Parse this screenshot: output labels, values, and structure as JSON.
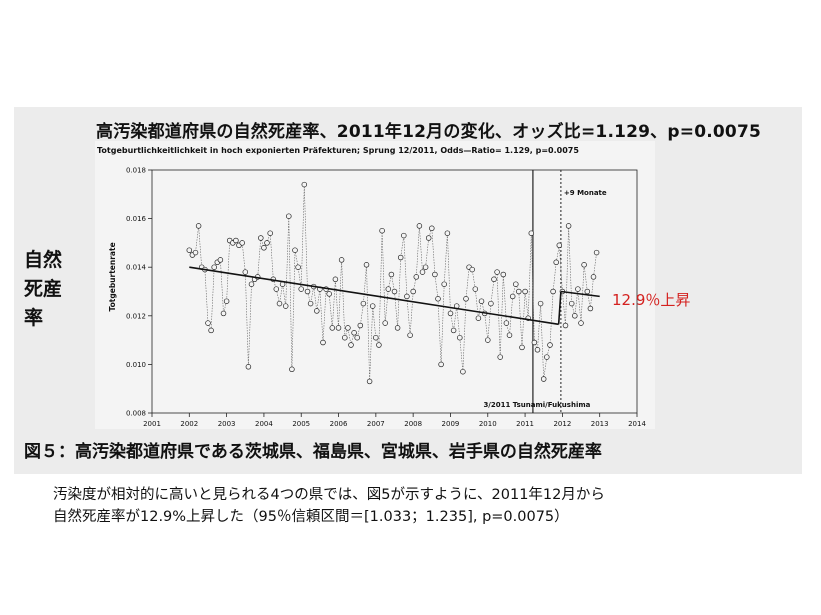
{
  "main_title": "高汚染都道府県の自然死産率、2011年12月の変化、オッズ比=1.129、p=0.0075",
  "side_label": [
    "自然",
    "死産",
    "率"
  ],
  "annotation": "12.9％上昇",
  "annotation_color": "#d4211f",
  "figure_caption": "図５：高汚染都道府県である茨城県、福島県、宮城県、岩手県の自然死産率",
  "description": [
    "汚染度が相対的に高いと見られる4つの県では、図5が示すように、2011年12月から",
    "自然死産率が12.9%上昇した（95％信頼区間＝[1.033；1.235], p=0.0075）"
  ],
  "chart_data": {
    "type": "scatter",
    "title": "Totgeburtlichkeitlichkeit in hoch exponierten Präfekturen; Sprung 12/2011, Odds—Ratio= 1.129, p=0.0075",
    "ylabel": "Totgeburtenrate",
    "xlabel": "",
    "xlim": [
      2001,
      2014
    ],
    "ylim": [
      0.008,
      0.018
    ],
    "x_ticks": [
      "2001",
      "2002",
      "2003",
      "2004",
      "2005",
      "2006",
      "2007",
      "2008",
      "2009",
      "2010",
      "2011",
      "2012",
      "2013",
      "2014"
    ],
    "y_ticks": [
      "0.008",
      "0.010",
      "0.012",
      "0.014",
      "0.016",
      "0.018"
    ],
    "grid": false,
    "events": [
      {
        "x": 2011.21,
        "label": "3/2011 Tsunami/Fukushima"
      },
      {
        "x": 2011.96,
        "label": "+9 Monate"
      }
    ],
    "trend_segments": [
      {
        "x": [
          2002.0,
          2011.9
        ],
        "y": [
          0.014,
          0.01165
        ]
      },
      {
        "x": [
          2011.96,
          2013.0
        ],
        "y": [
          0.013,
          0.0128
        ]
      }
    ],
    "series": [
      {
        "x": [
          2002.0,
          2002.083,
          2002.167,
          2002.25,
          2002.333,
          2002.417,
          2002.5,
          2002.583,
          2002.667,
          2002.75,
          2002.833,
          2002.917,
          2003.0,
          2003.083,
          2003.167,
          2003.25,
          2003.333,
          2003.417,
          2003.5,
          2003.583,
          2003.667,
          2003.75,
          2003.833,
          2003.917,
          2004.0,
          2004.083,
          2004.167,
          2004.25,
          2004.333,
          2004.417,
          2004.5,
          2004.583,
          2004.667,
          2004.75,
          2004.833,
          2004.917,
          2005.0,
          2005.083,
          2005.167,
          2005.25,
          2005.333,
          2005.417,
          2005.5,
          2005.583,
          2005.667,
          2005.75,
          2005.833,
          2005.917,
          2006.0,
          2006.083,
          2006.167,
          2006.25,
          2006.333,
          2006.417,
          2006.5,
          2006.583,
          2006.667,
          2006.75,
          2006.833,
          2006.917,
          2007.0,
          2007.083,
          2007.167,
          2007.25,
          2007.333,
          2007.417,
          2007.5,
          2007.583,
          2007.667,
          2007.75,
          2007.833,
          2007.917,
          2008.0,
          2008.083,
          2008.167,
          2008.25,
          2008.333,
          2008.417,
          2008.5,
          2008.583,
          2008.667,
          2008.75,
          2008.833,
          2008.917,
          2009.0,
          2009.083,
          2009.167,
          2009.25,
          2009.333,
          2009.417,
          2009.5,
          2009.583,
          2009.667,
          2009.75,
          2009.833,
          2009.917,
          2010.0,
          2010.083,
          2010.167,
          2010.25,
          2010.333,
          2010.417,
          2010.5,
          2010.583,
          2010.667,
          2010.75,
          2010.833,
          2010.917,
          2011.0,
          2011.083,
          2011.167,
          2011.25,
          2011.333,
          2011.417,
          2011.5,
          2011.583,
          2011.667,
          2011.75,
          2011.833,
          2011.917,
          2012.0,
          2012.083,
          2012.167,
          2012.25,
          2012.333,
          2012.417,
          2012.5,
          2012.583,
          2012.667,
          2012.75,
          2012.833,
          2012.917
        ],
        "y": [
          0.0147,
          0.0145,
          0.0146,
          0.0157,
          0.014,
          0.0139,
          0.0117,
          0.0114,
          0.014,
          0.0142,
          0.0143,
          0.0121,
          0.0126,
          0.0151,
          0.015,
          0.0151,
          0.0149,
          0.015,
          0.0138,
          0.0099,
          0.0133,
          0.0135,
          0.0136,
          0.0152,
          0.0148,
          0.015,
          0.0154,
          0.0135,
          0.0131,
          0.0125,
          0.0133,
          0.0124,
          0.0161,
          0.0098,
          0.0147,
          0.014,
          0.0131,
          0.0174,
          0.013,
          0.0125,
          0.0132,
          0.0122,
          0.0131,
          0.0109,
          0.0131,
          0.0129,
          0.0115,
          0.0135,
          0.0115,
          0.0143,
          0.0111,
          0.0115,
          0.0108,
          0.0113,
          0.0111,
          0.0116,
          0.0125,
          0.0141,
          0.0093,
          0.0124,
          0.0111,
          0.0108,
          0.0155,
          0.0117,
          0.0131,
          0.0137,
          0.013,
          0.0115,
          0.0144,
          0.0153,
          0.0128,
          0.0112,
          0.013,
          0.0136,
          0.0157,
          0.0138,
          0.014,
          0.0152,
          0.0156,
          0.0137,
          0.0127,
          0.01,
          0.0133,
          0.0154,
          0.0121,
          0.0114,
          0.0124,
          0.0111,
          0.0097,
          0.0127,
          0.014,
          0.0139,
          0.0131,
          0.0119,
          0.0126,
          0.0121,
          0.011,
          0.0125,
          0.0135,
          0.0138,
          0.0103,
          0.0137,
          0.0117,
          0.0112,
          0.0128,
          0.0133,
          0.013,
          0.0107,
          0.013,
          0.0119,
          0.0154,
          0.0109,
          0.0106,
          0.0125,
          0.0094,
          0.0103,
          0.0108,
          0.013,
          0.0142,
          0.0149,
          0.013,
          0.0116,
          0.0157,
          0.0125,
          0.012,
          0.0131,
          0.0117,
          0.0141,
          0.013,
          0.0123,
          0.0136,
          0.0146
        ]
      }
    ]
  }
}
